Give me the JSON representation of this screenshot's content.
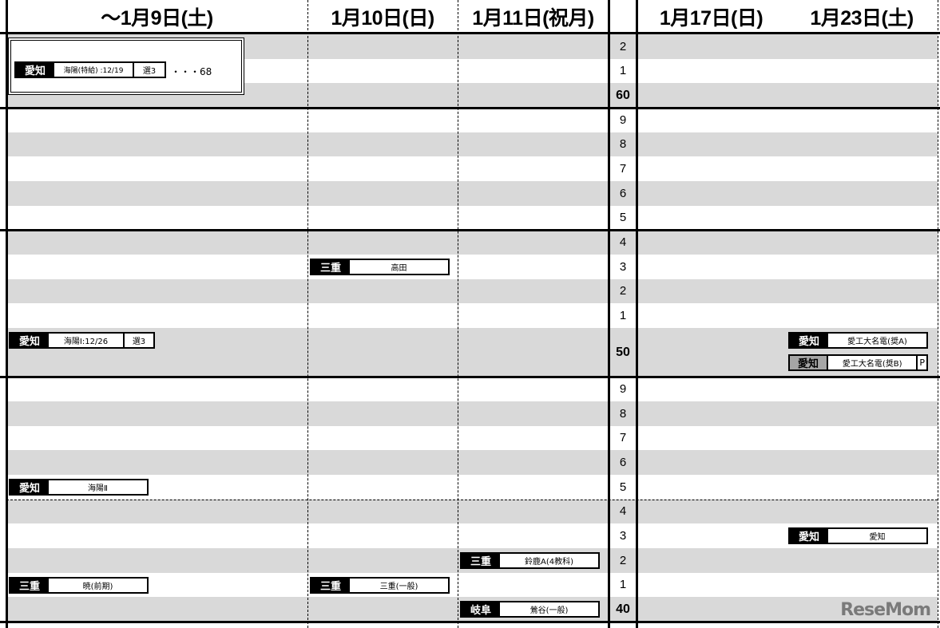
{
  "headers": [
    "～1月9日(土)",
    "1月10日(日)",
    "1月11日(祝月)",
    "",
    "1月17日(日)",
    "1月23日(土)"
  ],
  "scores": [
    "2",
    "1",
    "60",
    "9",
    "8",
    "7",
    "6",
    "5",
    "4",
    "3",
    "2",
    "1",
    "50",
    "9",
    "8",
    "7",
    "6",
    "5",
    "4",
    "3",
    "2",
    "1",
    "40"
  ],
  "special": {
    "pref": "愛知",
    "name": "海陽(特給) :12/19",
    "extra": "選3",
    "tail": "・・・68"
  },
  "entries": [
    {
      "col": 0,
      "row": 12,
      "pref": "愛知",
      "name": "海陽Ⅰ:12/26",
      "extra": "選3"
    },
    {
      "col": 0,
      "row": 17,
      "pref": "愛知",
      "name": "海陽Ⅱ"
    },
    {
      "col": 0,
      "row": 21,
      "pref": "三重",
      "name": "暁(前期)"
    },
    {
      "col": 1,
      "row": 9,
      "pref": "三重",
      "name": "高田"
    },
    {
      "col": 1,
      "row": 21,
      "pref": "三重",
      "name": "三重(一般)",
      "outlined": true
    },
    {
      "col": 2,
      "row": 20,
      "pref": "三重",
      "name": "鈴鹿A(4教科)"
    },
    {
      "col": 2,
      "row": 22,
      "pref": "岐阜",
      "name": "鶯谷(一般)"
    },
    {
      "col": 5,
      "row": 12,
      "pref": "愛知",
      "name": "愛工大名電(奨A)"
    },
    {
      "col": 5,
      "row": 12,
      "pref": "愛知",
      "name": "愛工大名電(奨B)",
      "extra": "P",
      "secondary": true,
      "pref_style": "gray"
    },
    {
      "col": 5,
      "row": 19,
      "pref": "愛知",
      "name": "愛知"
    }
  ],
  "watermark": "ReseMom",
  "colors": {
    "row_shade": "#d9d9d9",
    "badge": "#000000",
    "badge_gray": "#a6a6a6"
  }
}
